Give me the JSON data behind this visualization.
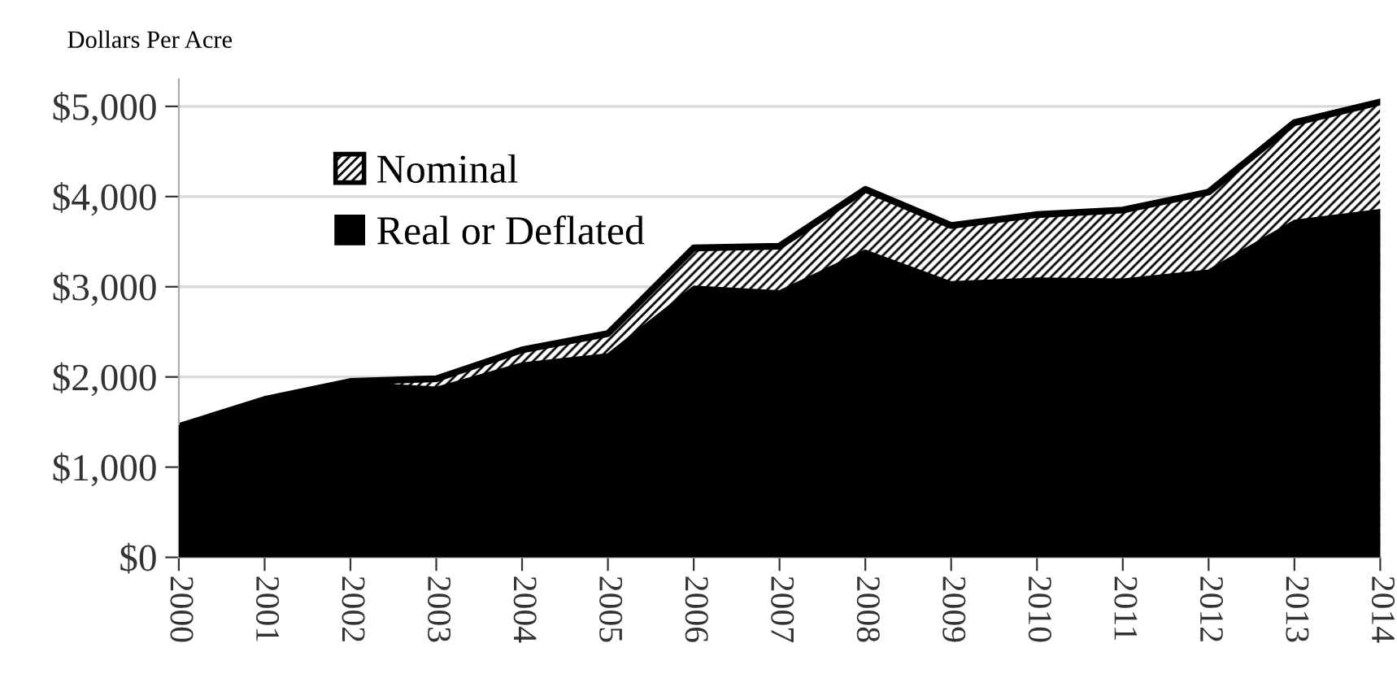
{
  "chart_data": {
    "type": "area",
    "ylabel": "Dollars Per Acre",
    "categories": [
      "2000",
      "2001",
      "2002",
      "2003",
      "2004",
      "2005",
      "2006",
      "2007",
      "2008",
      "2009",
      "2010",
      "2011",
      "2012",
      "2013",
      "2014"
    ],
    "series": [
      {
        "name": "Nominal",
        "color": "#000000",
        "values": [
          1450,
          1750,
          1950,
          1980,
          2300,
          2480,
          3430,
          3450,
          4080,
          3680,
          3800,
          3850,
          4050,
          4820,
          5050
        ]
      },
      {
        "name": "Real or Deflated",
        "color": "#000000",
        "values": [
          1450,
          1750,
          1940,
          1880,
          2150,
          2250,
          3000,
          2950,
          3400,
          3050,
          3090,
          3080,
          3180,
          3730,
          3850
        ]
      }
    ],
    "ylim": [
      0,
      5300
    ],
    "yticks": [
      {
        "value": 0,
        "label": "$0"
      },
      {
        "value": 1000,
        "label": "$1,000"
      },
      {
        "value": 2000,
        "label": "$2,000"
      },
      {
        "value": 3000,
        "label": "$3,000"
      },
      {
        "value": 4000,
        "label": "$4,000"
      },
      {
        "value": 5000,
        "label": "$5,000"
      }
    ],
    "grid": "y",
    "legend": "top left"
  }
}
